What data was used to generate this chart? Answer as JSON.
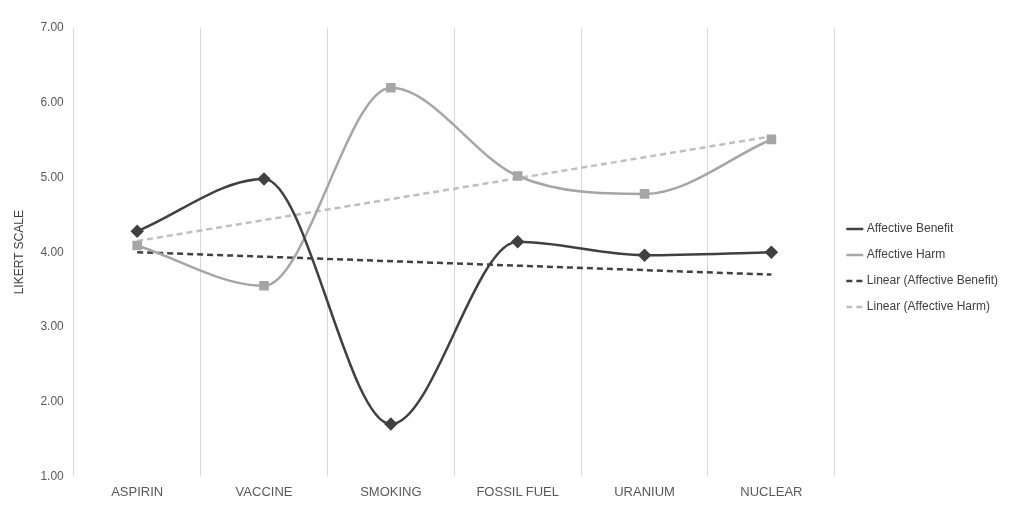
{
  "chart_data": {
    "type": "line",
    "ylabel": "LIKERT SCALE",
    "categories": [
      "ASPIRIN",
      "VACCINE",
      "SMOKING",
      "FOSSIL FUEL",
      "URANIUM",
      "NUCLEAR"
    ],
    "series": [
      {
        "name": "Affective Benefit",
        "color": "#404040",
        "marker": "diamond",
        "line_style": "solid",
        "values": [
          4.28,
          4.98,
          1.7,
          4.14,
          3.96,
          4.0
        ]
      },
      {
        "name": "Affective Harm",
        "color": "#a6a6a6",
        "marker": "square",
        "line_style": "solid",
        "values": [
          4.09,
          3.55,
          6.2,
          5.02,
          4.78,
          5.51
        ]
      },
      {
        "name": "Linear (Affective Benefit)",
        "color": "#404040",
        "marker": "none",
        "line_style": "dashed",
        "values": [
          4.0,
          null,
          null,
          null,
          null,
          3.7
        ]
      },
      {
        "name": "Linear (Affective Harm)",
        "color": "#bfbfbf",
        "marker": "none",
        "line_style": "dashed",
        "values": [
          4.15,
          null,
          null,
          null,
          null,
          5.55
        ]
      }
    ],
    "ylim": [
      1,
      7
    ],
    "yticks": [
      {
        "value": 1,
        "label": "1.00"
      },
      {
        "value": 2,
        "label": "2.00"
      },
      {
        "value": 3,
        "label": "3.00"
      },
      {
        "value": 4,
        "label": "4.00"
      },
      {
        "value": 5,
        "label": "5.00"
      },
      {
        "value": 6,
        "label": "6.00"
      },
      {
        "value": 7,
        "label": "7.00"
      }
    ],
    "grid": "x",
    "legend": "right"
  }
}
